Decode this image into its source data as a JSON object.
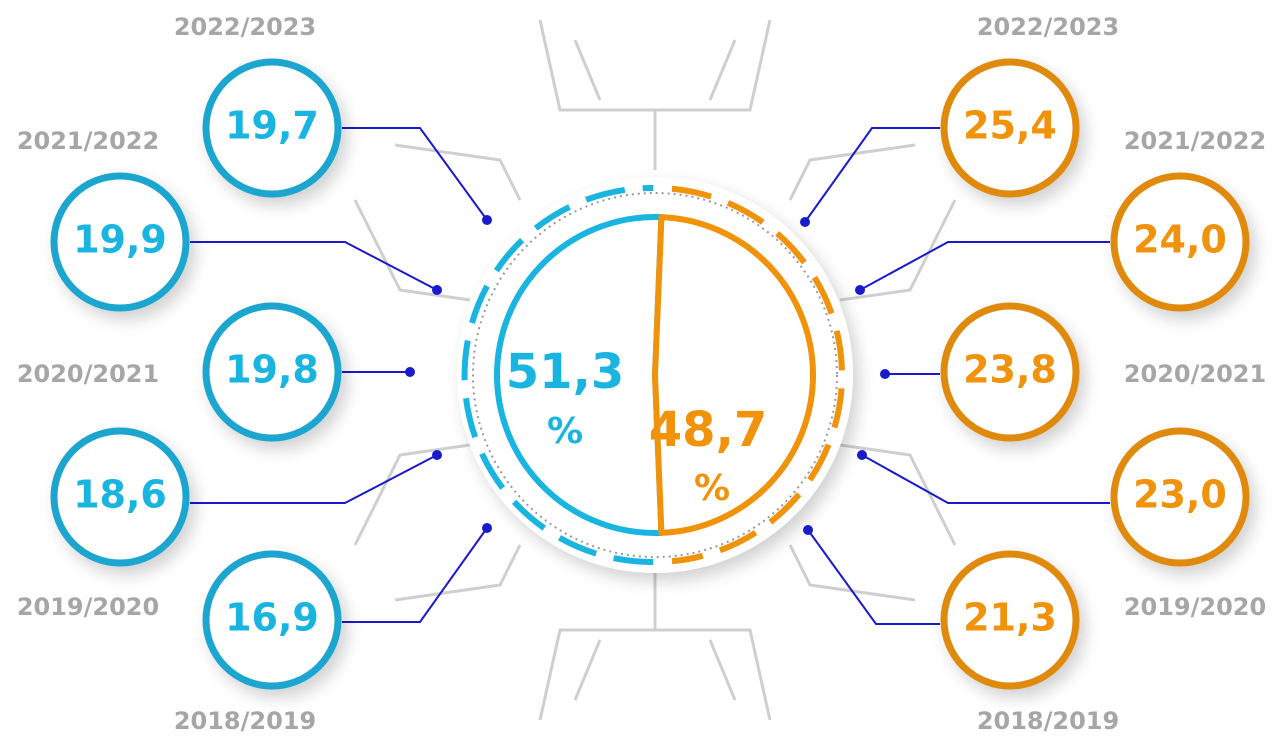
{
  "left": {
    "items": [
      {
        "year": "2022/2023",
        "value": "19,7"
      },
      {
        "year": "2021/2022",
        "value": "19,9"
      },
      {
        "year": "2020/2021",
        "value": "19,8"
      },
      {
        "year": "2019/2020",
        "value": "18,6"
      },
      {
        "year": "2018/2019",
        "value": "16,9"
      }
    ]
  },
  "right": {
    "items": [
      {
        "year": "2022/2023",
        "value": "25,4"
      },
      {
        "year": "2021/2022",
        "value": "24,0"
      },
      {
        "year": "2020/2021",
        "value": "23,8"
      },
      {
        "year": "2019/2020",
        "value": "23,0"
      },
      {
        "year": "2018/2019",
        "value": "21,3"
      }
    ]
  },
  "pie": {
    "values": [
      51.3,
      48.7
    ],
    "value_labels": [
      "51,3",
      "48,7"
    ],
    "unit": "%",
    "colors": [
      "#1ab4e0",
      "#f0920a"
    ]
  }
}
